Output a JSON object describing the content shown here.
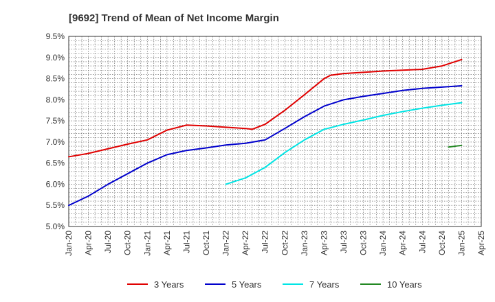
{
  "chart_data": {
    "type": "line",
    "title": "[9692]  Trend of Mean of Net Income Margin",
    "xlabel": "",
    "ylabel": "",
    "ylim": [
      5.0,
      9.5
    ],
    "yticks": [
      "5.0%",
      "5.5%",
      "6.0%",
      "6.5%",
      "7.0%",
      "7.5%",
      "8.0%",
      "8.5%",
      "9.0%",
      "9.5%"
    ],
    "xticks": [
      "Jan-20",
      "Apr-20",
      "Jul-20",
      "Oct-20",
      "Jan-21",
      "Apr-21",
      "Jul-21",
      "Oct-21",
      "Jan-22",
      "Apr-22",
      "Jul-22",
      "Oct-22",
      "Jan-23",
      "Apr-23",
      "Jul-23",
      "Oct-23",
      "Jan-24",
      "Apr-24",
      "Jul-24",
      "Oct-24",
      "Jan-25",
      "Apr-25"
    ],
    "grid": true,
    "legend_position": "bottom",
    "series": [
      {
        "name": "3 Years",
        "color": "#e00000",
        "points": [
          [
            "2020-01",
            6.65
          ],
          [
            "2020-04",
            6.73
          ],
          [
            "2020-07",
            6.84
          ],
          [
            "2020-10",
            6.95
          ],
          [
            "2021-01",
            7.05
          ],
          [
            "2021-04",
            7.28
          ],
          [
            "2021-07",
            7.4
          ],
          [
            "2021-10",
            7.38
          ],
          [
            "2022-01",
            7.35
          ],
          [
            "2022-04",
            7.32
          ],
          [
            "2022-05",
            7.3
          ],
          [
            "2022-07",
            7.42
          ],
          [
            "2022-10",
            7.75
          ],
          [
            "2023-01",
            8.12
          ],
          [
            "2023-04",
            8.5
          ],
          [
            "2023-05",
            8.58
          ],
          [
            "2023-07",
            8.62
          ],
          [
            "2023-10",
            8.65
          ],
          [
            "2024-01",
            8.68
          ],
          [
            "2024-04",
            8.7
          ],
          [
            "2024-07",
            8.72
          ],
          [
            "2024-10",
            8.8
          ],
          [
            "2025-01",
            8.95
          ]
        ]
      },
      {
        "name": "5 Years",
        "color": "#0000cc",
        "points": [
          [
            "2020-01",
            5.5
          ],
          [
            "2020-04",
            5.72
          ],
          [
            "2020-07",
            6.0
          ],
          [
            "2020-10",
            6.25
          ],
          [
            "2021-01",
            6.5
          ],
          [
            "2021-04",
            6.7
          ],
          [
            "2021-07",
            6.8
          ],
          [
            "2021-10",
            6.86
          ],
          [
            "2022-01",
            6.93
          ],
          [
            "2022-04",
            6.97
          ],
          [
            "2022-07",
            7.05
          ],
          [
            "2022-10",
            7.32
          ],
          [
            "2023-01",
            7.6
          ],
          [
            "2023-04",
            7.85
          ],
          [
            "2023-07",
            8.0
          ],
          [
            "2023-10",
            8.08
          ],
          [
            "2024-01",
            8.15
          ],
          [
            "2024-04",
            8.22
          ],
          [
            "2024-07",
            8.27
          ],
          [
            "2024-10",
            8.3
          ],
          [
            "2025-01",
            8.33
          ]
        ]
      },
      {
        "name": "7 Years",
        "color": "#00e5e5",
        "points": [
          [
            "2022-01",
            6.0
          ],
          [
            "2022-04",
            6.15
          ],
          [
            "2022-07",
            6.4
          ],
          [
            "2022-10",
            6.75
          ],
          [
            "2023-01",
            7.05
          ],
          [
            "2023-04",
            7.3
          ],
          [
            "2023-07",
            7.42
          ],
          [
            "2023-10",
            7.52
          ],
          [
            "2024-01",
            7.63
          ],
          [
            "2024-04",
            7.72
          ],
          [
            "2024-07",
            7.8
          ],
          [
            "2024-10",
            7.87
          ],
          [
            "2025-01",
            7.93
          ]
        ]
      },
      {
        "name": "10 Years",
        "color": "#228822",
        "points": [
          [
            "2024-11",
            6.88
          ],
          [
            "2025-01",
            6.92
          ]
        ]
      }
    ]
  }
}
